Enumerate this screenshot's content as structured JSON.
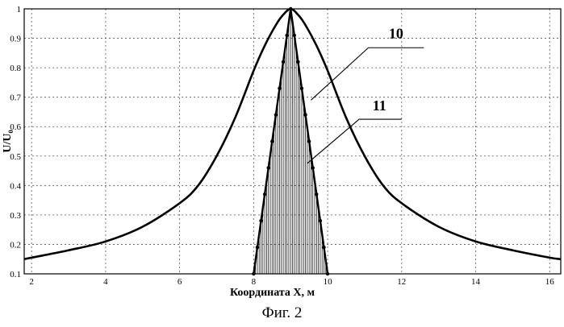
{
  "chart_data": {
    "type": "line",
    "xlabel": "Координата X, м",
    "ylabel": "U/U₀",
    "xlim": [
      1.8,
      16.3
    ],
    "ylim": [
      0.1,
      1.0
    ],
    "x_ticks": [
      "2",
      "4",
      "6",
      "8",
      "10",
      "12",
      "14",
      "16"
    ],
    "y_ticks": [
      "0.1",
      "0.2",
      "0.3",
      "0.4",
      "0.5",
      "0.6",
      "0.7",
      "0.8",
      "0.9",
      "1"
    ],
    "grid": true,
    "series": [
      {
        "label": "10",
        "x": [
          1.8,
          2,
          3,
          4,
          5,
          6,
          6.5,
          7,
          7.5,
          8,
          8.3,
          8.6,
          8.8,
          9,
          9.2,
          9.4,
          9.7,
          10,
          10.5,
          11,
          11.5,
          12,
          13,
          14,
          15,
          16,
          16.3
        ],
        "y": [
          0.15,
          0.155,
          0.18,
          0.21,
          0.26,
          0.34,
          0.4,
          0.5,
          0.63,
          0.79,
          0.875,
          0.945,
          0.98,
          1.0,
          0.98,
          0.945,
          0.875,
          0.79,
          0.63,
          0.5,
          0.4,
          0.34,
          0.26,
          0.21,
          0.18,
          0.155,
          0.15
        ]
      },
      {
        "label": "11",
        "x": [
          8.0,
          8.1,
          8.2,
          8.3,
          8.4,
          8.5,
          8.6,
          8.7,
          8.8,
          8.9,
          9.0,
          9.1,
          9.2,
          9.3,
          9.4,
          9.5,
          9.6,
          9.7,
          9.8,
          9.9,
          10.0
        ],
        "y": [
          0.1,
          0.19,
          0.28,
          0.37,
          0.46,
          0.55,
          0.64,
          0.73,
          0.82,
          0.91,
          1.0,
          0.91,
          0.82,
          0.73,
          0.64,
          0.55,
          0.46,
          0.37,
          0.28,
          0.19,
          0.1
        ]
      }
    ]
  },
  "caption": "Фиг. 2"
}
